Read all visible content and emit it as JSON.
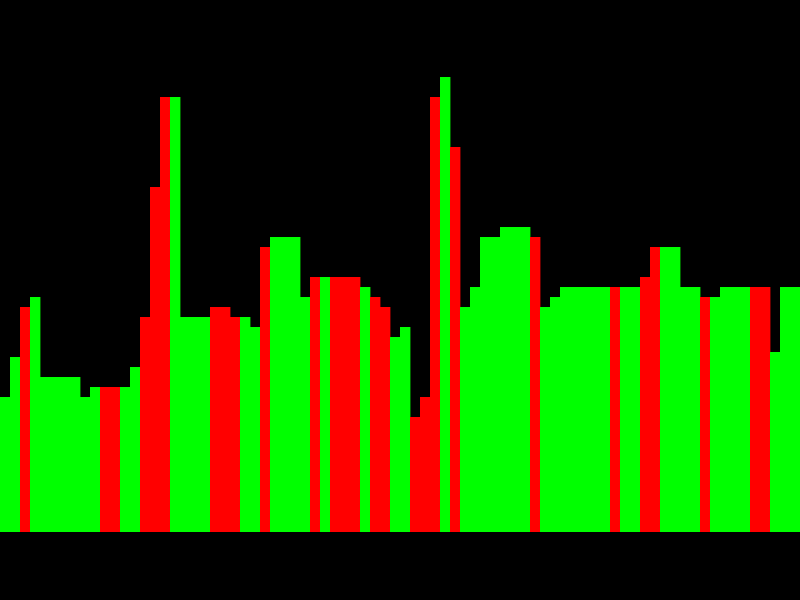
{
  "chart_data": {
    "type": "bar",
    "title": "",
    "xlabel": "",
    "ylabel": "",
    "grid": false,
    "legend": "none",
    "ylim": [
      0,
      455
    ],
    "colors": {
      "background": "#000000",
      "up": "#00ff00",
      "down": "#ff0000"
    },
    "series": [
      {
        "values": [
          {
            "h": 135,
            "c": "up"
          },
          {
            "h": 175,
            "c": "up"
          },
          {
            "h": 225,
            "c": "down"
          },
          {
            "h": 235,
            "c": "up"
          },
          {
            "h": 155,
            "c": "up"
          },
          {
            "h": 155,
            "c": "up"
          },
          {
            "h": 155,
            "c": "up"
          },
          {
            "h": 155,
            "c": "up"
          },
          {
            "h": 135,
            "c": "up"
          },
          {
            "h": 145,
            "c": "up"
          },
          {
            "h": 145,
            "c": "down"
          },
          {
            "h": 145,
            "c": "down"
          },
          {
            "h": 145,
            "c": "up"
          },
          {
            "h": 165,
            "c": "up"
          },
          {
            "h": 215,
            "c": "down"
          },
          {
            "h": 345,
            "c": "down"
          },
          {
            "h": 435,
            "c": "down"
          },
          {
            "h": 435,
            "c": "up"
          },
          {
            "h": 215,
            "c": "up"
          },
          {
            "h": 215,
            "c": "up"
          },
          {
            "h": 215,
            "c": "up"
          },
          {
            "h": 225,
            "c": "down"
          },
          {
            "h": 225,
            "c": "down"
          },
          {
            "h": 215,
            "c": "down"
          },
          {
            "h": 215,
            "c": "up"
          },
          {
            "h": 205,
            "c": "up"
          },
          {
            "h": 285,
            "c": "down"
          },
          {
            "h": 295,
            "c": "up"
          },
          {
            "h": 295,
            "c": "up"
          },
          {
            "h": 295,
            "c": "up"
          },
          {
            "h": 235,
            "c": "up"
          },
          {
            "h": 255,
            "c": "down"
          },
          {
            "h": 255,
            "c": "up"
          },
          {
            "h": 255,
            "c": "down"
          },
          {
            "h": 255,
            "c": "down"
          },
          {
            "h": 255,
            "c": "down"
          },
          {
            "h": 245,
            "c": "up"
          },
          {
            "h": 235,
            "c": "down"
          },
          {
            "h": 225,
            "c": "down"
          },
          {
            "h": 195,
            "c": "up"
          },
          {
            "h": 205,
            "c": "up"
          },
          {
            "h": 115,
            "c": "down"
          },
          {
            "h": 135,
            "c": "down"
          },
          {
            "h": 435,
            "c": "down"
          },
          {
            "h": 455,
            "c": "up"
          },
          {
            "h": 385,
            "c": "down"
          },
          {
            "h": 225,
            "c": "up"
          },
          {
            "h": 245,
            "c": "up"
          },
          {
            "h": 295,
            "c": "up"
          },
          {
            "h": 295,
            "c": "up"
          },
          {
            "h": 305,
            "c": "up"
          },
          {
            "h": 305,
            "c": "up"
          },
          {
            "h": 305,
            "c": "up"
          },
          {
            "h": 295,
            "c": "down"
          },
          {
            "h": 225,
            "c": "up"
          },
          {
            "h": 235,
            "c": "up"
          },
          {
            "h": 245,
            "c": "up"
          },
          {
            "h": 245,
            "c": "up"
          },
          {
            "h": 245,
            "c": "up"
          },
          {
            "h": 245,
            "c": "up"
          },
          {
            "h": 245,
            "c": "up"
          },
          {
            "h": 245,
            "c": "down"
          },
          {
            "h": 245,
            "c": "up"
          },
          {
            "h": 245,
            "c": "up"
          },
          {
            "h": 255,
            "c": "down"
          },
          {
            "h": 285,
            "c": "down"
          },
          {
            "h": 285,
            "c": "up"
          },
          {
            "h": 285,
            "c": "up"
          },
          {
            "h": 245,
            "c": "up"
          },
          {
            "h": 245,
            "c": "up"
          },
          {
            "h": 235,
            "c": "down"
          },
          {
            "h": 235,
            "c": "up"
          },
          {
            "h": 245,
            "c": "up"
          },
          {
            "h": 245,
            "c": "up"
          },
          {
            "h": 245,
            "c": "up"
          },
          {
            "h": 245,
            "c": "down"
          },
          {
            "h": 245,
            "c": "down"
          },
          {
            "h": 180,
            "c": "up"
          },
          {
            "h": 245,
            "c": "up"
          },
          {
            "h": 245,
            "c": "up"
          }
        ]
      }
    ]
  }
}
